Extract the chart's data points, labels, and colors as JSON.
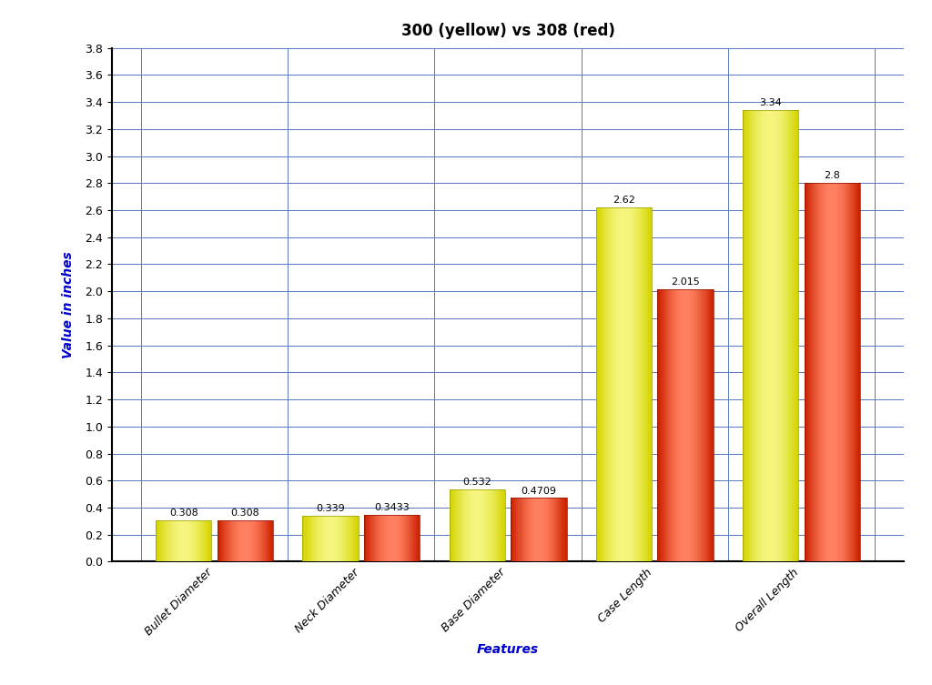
{
  "title": "300 (yellow) vs 308 (red)",
  "xlabel": "Features",
  "ylabel": "Value in inches",
  "categories": [
    "Bullet Diameter",
    "Neck Diameter",
    "Base Diameter",
    "Case Length",
    "Overall Length"
  ],
  "values_300": [
    0.308,
    0.339,
    0.532,
    2.62,
    3.34
  ],
  "values_308": [
    0.308,
    0.3433,
    0.4709,
    2.015,
    2.8
  ],
  "labels_300": [
    "0.308",
    "0.339",
    "0.532",
    "2.62",
    "3.34"
  ],
  "labels_308": [
    "0.308",
    "0.3433",
    "0.4709",
    "2.015",
    "2.8"
  ],
  "color_300_main": "#d4d400",
  "color_300_light": "#f5f580",
  "color_308_main": "#cc2200",
  "color_308_light": "#ff8060",
  "ylim": [
    0.0,
    3.8
  ],
  "yticks": [
    0.0,
    0.2,
    0.4,
    0.6,
    0.8,
    1.0,
    1.2,
    1.4,
    1.6,
    1.8,
    2.0,
    2.2,
    2.4,
    2.6,
    2.8,
    3.0,
    3.2,
    3.4,
    3.6,
    3.8
  ],
  "bar_width": 0.38,
  "background_color": "#ffffff",
  "grid_color": "#5577bb",
  "title_fontsize": 12,
  "axis_label_fontsize": 10,
  "tick_label_fontsize": 9,
  "value_label_fontsize": 8
}
